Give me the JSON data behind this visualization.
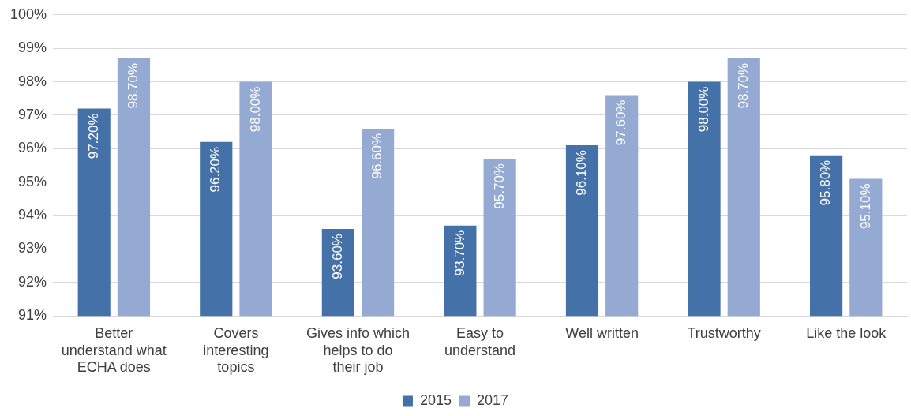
{
  "chart_data": {
    "type": "bar",
    "categories": [
      "Better understand what ECHA does",
      "Covers interesting topics",
      "Gives info which helps to do their job",
      "Easy to understand",
      "Well written",
      "Trustworthy",
      "Like the look"
    ],
    "series": [
      {
        "name": "2015",
        "color": "#4472a8",
        "values": [
          97.2,
          96.2,
          93.6,
          93.7,
          96.1,
          98.0,
          95.8
        ],
        "value_labels": [
          "97.20%",
          "96.20%",
          "93.60%",
          "93.70%",
          "96.10%",
          "98.00%",
          "95.80%"
        ]
      },
      {
        "name": "2017",
        "color": "#95aad3",
        "values": [
          98.7,
          98.0,
          96.6,
          95.7,
          97.6,
          98.7,
          95.1
        ],
        "value_labels": [
          "98.70%",
          "98.00%",
          "96.60%",
          "95.70%",
          "97.60%",
          "98.70%",
          "95.10%"
        ]
      }
    ],
    "ylim": [
      91,
      100
    ],
    "yticks": [
      {
        "value": 91,
        "label": "91%"
      },
      {
        "value": 92,
        "label": "92%"
      },
      {
        "value": 93,
        "label": "93%"
      },
      {
        "value": 94,
        "label": "94%"
      },
      {
        "value": 95,
        "label": "95%"
      },
      {
        "value": 96,
        "label": "96%"
      },
      {
        "value": 97,
        "label": "97%"
      },
      {
        "value": 98,
        "label": "98%"
      },
      {
        "value": 99,
        "label": "99%"
      },
      {
        "value": 100,
        "label": "100%"
      }
    ],
    "grid": "y",
    "legend": "bottom"
  }
}
